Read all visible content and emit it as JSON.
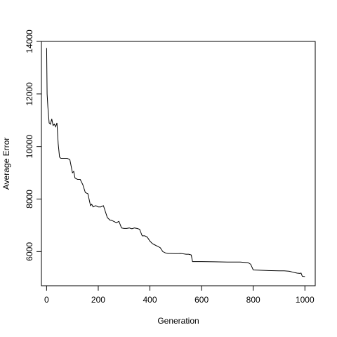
{
  "chart_data": {
    "type": "line",
    "title": "",
    "xlabel": "Generation",
    "ylabel": "Average Error",
    "xlim": [
      -20,
      1040
    ],
    "ylim": [
      4700,
      14000
    ],
    "xticks": [
      0,
      200,
      400,
      600,
      800,
      1000
    ],
    "yticks": [
      6000,
      8000,
      10000,
      12000,
      14000
    ],
    "grid": false,
    "series": [
      {
        "color": "#000000",
        "x": [
          0,
          2,
          5,
          10,
          15,
          20,
          25,
          30,
          35,
          40,
          45,
          50,
          55,
          60,
          70,
          80,
          90,
          100,
          105,
          110,
          120,
          130,
          140,
          150,
          160,
          170,
          175,
          180,
          190,
          200,
          210,
          220,
          235,
          245,
          250,
          260,
          270,
          280,
          290,
          300,
          310,
          320,
          330,
          340,
          350,
          360,
          370,
          380,
          390,
          400,
          410,
          420,
          430,
          440,
          450,
          460,
          470,
          480,
          500,
          520,
          540,
          550,
          560,
          565,
          600,
          650,
          700,
          750,
          780,
          790,
          800,
          850,
          900,
          920,
          940,
          960,
          970,
          980,
          985,
          990,
          1000
        ],
        "y": [
          13750,
          12000,
          11500,
          10900,
          10850,
          11050,
          10800,
          10850,
          10750,
          10900,
          10100,
          9600,
          9550,
          9550,
          9550,
          9550,
          9500,
          9000,
          9050,
          8800,
          8750,
          8750,
          8550,
          8250,
          8200,
          7750,
          7800,
          7700,
          7750,
          7700,
          7700,
          7750,
          7300,
          7200,
          7200,
          7150,
          7100,
          7150,
          6900,
          6880,
          6880,
          6900,
          6870,
          6900,
          6880,
          6850,
          6600,
          6600,
          6550,
          6400,
          6300,
          6250,
          6200,
          6150,
          6000,
          5950,
          5930,
          5930,
          5920,
          5930,
          5900,
          5900,
          5870,
          5620,
          5620,
          5610,
          5600,
          5600,
          5580,
          5520,
          5300,
          5280,
          5270,
          5270,
          5250,
          5200,
          5180,
          5170,
          5180,
          5060,
          5050
        ]
      }
    ]
  }
}
